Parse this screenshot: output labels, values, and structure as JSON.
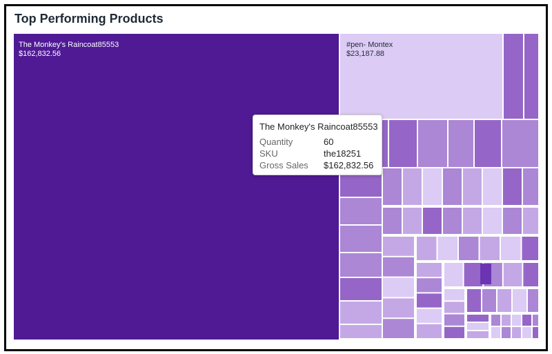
{
  "page": {
    "title": "Top Performing Products"
  },
  "colors": {
    "top": "#4f1a94",
    "second": "#dccbf5",
    "levels": [
      "#9566c7",
      "#ab87d6",
      "#c4a8e6",
      "#dccbf5",
      "#6b34b3"
    ]
  },
  "chart_data": {
    "type": "treemap",
    "title": "Top Performing Products",
    "measure": "Gross Sales",
    "items": [
      {
        "name": "The Monkey's Raincoat85553",
        "value": 162832.56,
        "label": "$162,832.56"
      },
      {
        "name": "#pen- Montex",
        "value": 23187.88,
        "label": "$23,187.88"
      }
    ]
  },
  "tooltip": {
    "title": "The Monkey's Raincoat85553",
    "rows": [
      {
        "key": "Quantity",
        "value": "60"
      },
      {
        "key": "SKU",
        "value": "the18251"
      },
      {
        "key": "Gross Sales",
        "value": "$162,832.56"
      }
    ]
  }
}
